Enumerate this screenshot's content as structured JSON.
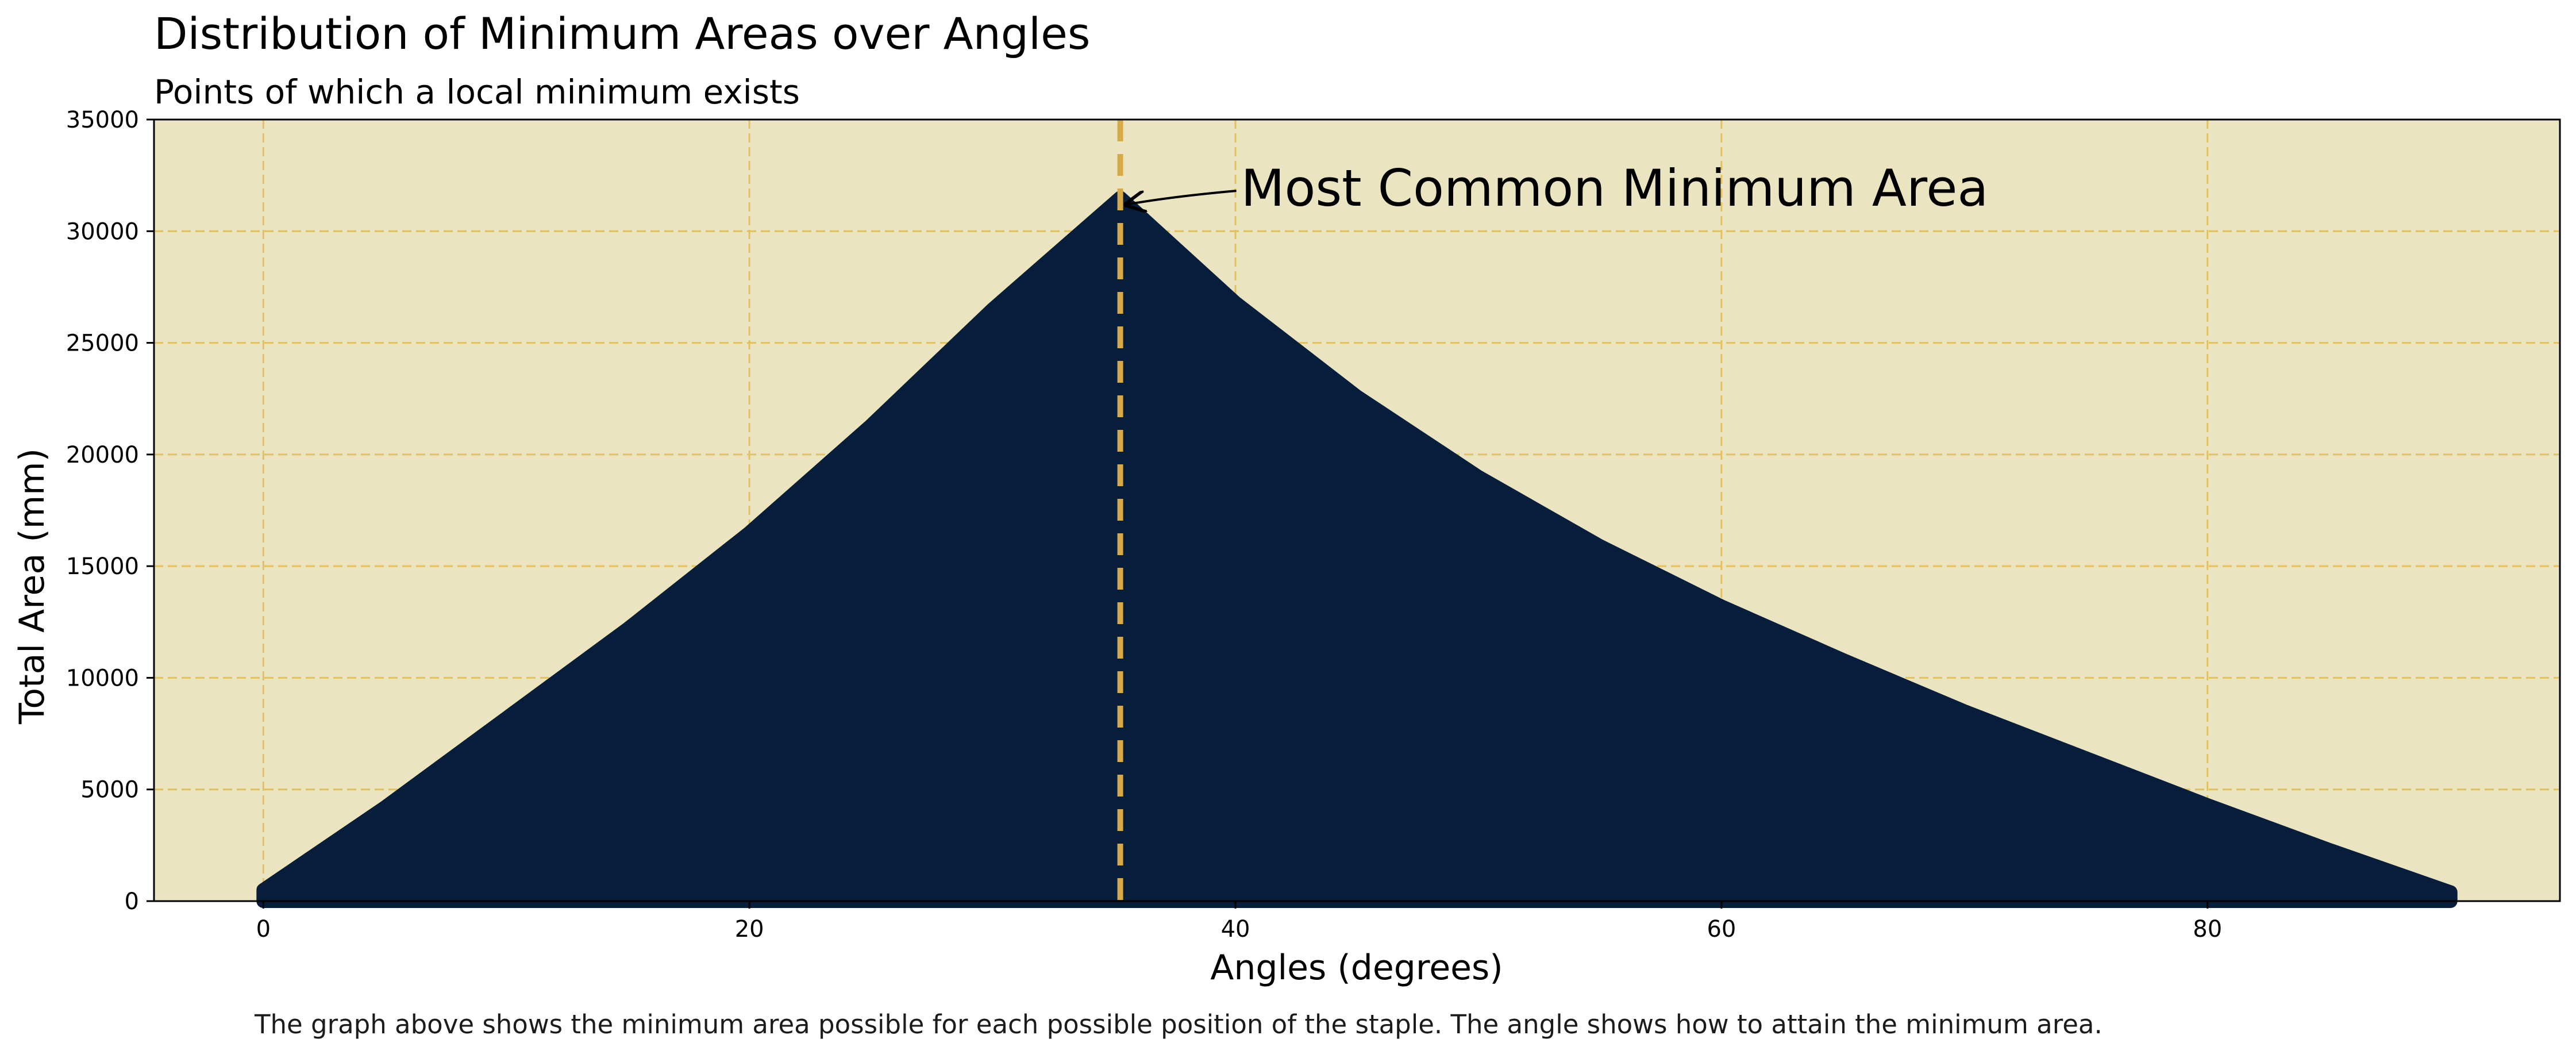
{
  "chart_data": {
    "type": "area",
    "title": "Distribution of Minimum Areas over Angles",
    "subtitle": "Points of which a local minimum exists",
    "xlabel": "Angles (degrees)",
    "ylabel": "Total Area (mm)",
    "xlim": [
      -4.5,
      94.5
    ],
    "ylim": [
      0,
      35000
    ],
    "xticks": [
      0,
      20,
      40,
      60,
      80
    ],
    "yticks": [
      0,
      5000,
      10000,
      15000,
      20000,
      25000,
      30000,
      35000
    ],
    "grid": true,
    "colors": {
      "background": "#ebe4c1",
      "fill": "#061d3b",
      "grid": "#e2c15e",
      "marker_line": "#d7aa48"
    },
    "series": [
      {
        "x": [
          0,
          5,
          10,
          15,
          20,
          25,
          30,
          35.26,
          40,
          45,
          50,
          55,
          60,
          65,
          70,
          75,
          80,
          85,
          90
        ],
        "y": [
          500,
          4200,
          8200,
          12200,
          16500,
          21300,
          26500,
          31500,
          26800,
          22600,
          19000,
          15900,
          13200,
          10800,
          8500,
          6400,
          4300,
          2300,
          400
        ]
      }
    ],
    "reference_line": {
      "x": 35.26
    },
    "annotation": {
      "text": "Most Common Minimum Area",
      "x": 35.26,
      "y": 31500
    },
    "footnote": "The graph above shows the minimum area possible for each possible position of the staple. The angle shows how to attain the minimum area."
  }
}
